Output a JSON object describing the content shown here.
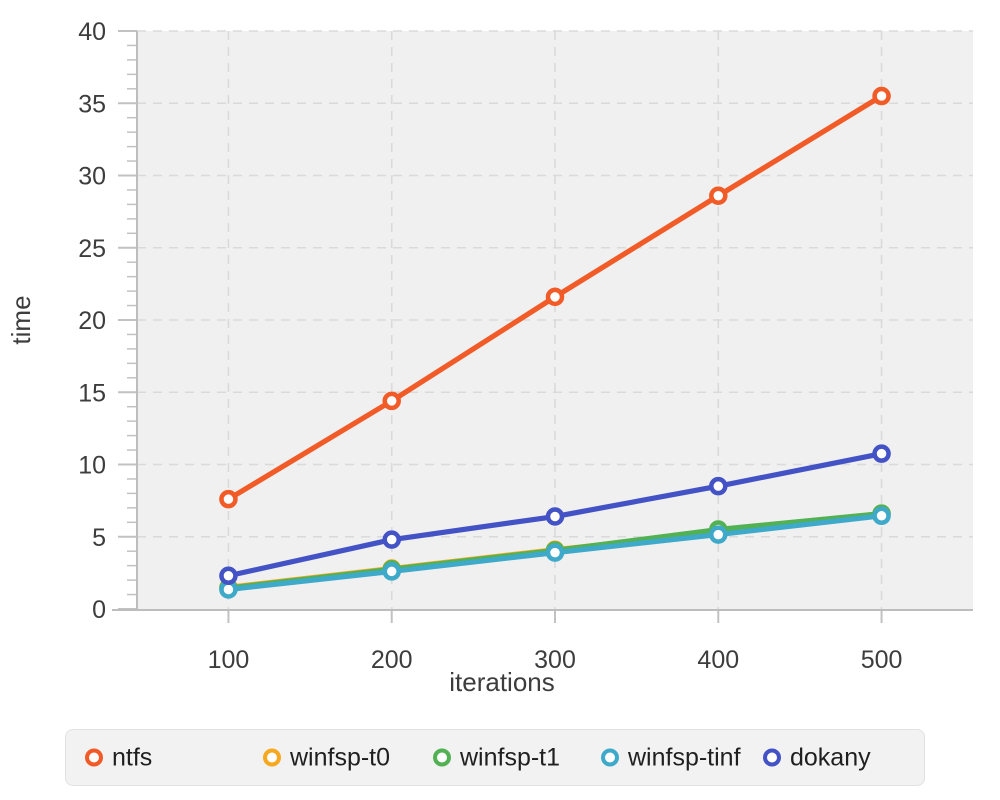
{
  "figure": {
    "background": "#ffffff",
    "plot_background": "#f0f0f0",
    "grid_color": "#dadada",
    "axis_line_color": "#bdbdbd",
    "tick_color": "#c2c2c2",
    "text_color": "#3d3d3d",
    "legend": {
      "background": "#f2f2f3",
      "border_color": "#e1e1e1"
    }
  },
  "chart_data": {
    "type": "line",
    "title": "",
    "xlabel": "iterations",
    "ylabel": "time",
    "x": [
      100,
      200,
      300,
      400,
      500
    ],
    "x_ticks": [
      "100",
      "200",
      "300",
      "400",
      "500"
    ],
    "y_ticks": [
      "0",
      "5",
      "10",
      "15",
      "20",
      "25",
      "30",
      "35",
      "40"
    ],
    "xlim": [
      44,
      556
    ],
    "ylim": [
      0,
      40
    ],
    "y_minor_tick_step": 1,
    "grid": "dashed horizontal and vertical at major ticks",
    "legend_position": "bottom",
    "marker": "open-circle",
    "series": [
      {
        "name": "ntfs",
        "color": "#f15b28",
        "values": [
          7.6,
          14.4,
          21.6,
          28.6,
          35.5
        ]
      },
      {
        "name": "winfsp-t0",
        "color": "#f6a821",
        "values": [
          1.5,
          2.8,
          4.1,
          5.3,
          6.6
        ]
      },
      {
        "name": "winfsp-t1",
        "color": "#52b152",
        "values": [
          1.45,
          2.75,
          4.05,
          5.5,
          6.6
        ]
      },
      {
        "name": "winfsp-tinf",
        "color": "#3fa9c9",
        "values": [
          1.35,
          2.6,
          3.9,
          5.15,
          6.45
        ]
      },
      {
        "name": "dokany",
        "color": "#4353c6",
        "values": [
          2.3,
          4.8,
          6.4,
          8.5,
          10.75
        ]
      }
    ]
  }
}
